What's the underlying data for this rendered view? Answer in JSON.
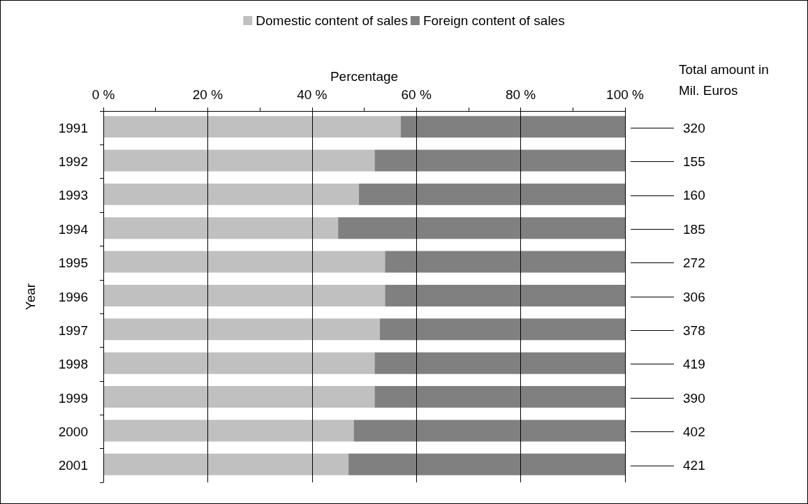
{
  "chart_data": {
    "type": "bar",
    "orientation": "horizontal",
    "stacked": true,
    "xlabel": "Percentage",
    "ylabel": "Year",
    "y2label": "Total amount in Mil. Euros",
    "categories": [
      "1991",
      "1992",
      "1993",
      "1994",
      "1995",
      "1996",
      "1997",
      "1998",
      "1999",
      "2000",
      "2001"
    ],
    "series": [
      {
        "name": "Domestic content of sales",
        "color": "#c0c0c0",
        "values": [
          57,
          52,
          49,
          45,
          54,
          54,
          53,
          52,
          52,
          48,
          47
        ]
      },
      {
        "name": "Foreign content of sales",
        "color": "#808080",
        "values": [
          43,
          48,
          51,
          55,
          46,
          46,
          47,
          48,
          48,
          52,
          53
        ]
      }
    ],
    "annotations": [
      "320",
      "155",
      "160",
      "185",
      "272",
      "306",
      "378",
      "419",
      "390",
      "402",
      "421"
    ],
    "xlim": [
      0,
      100
    ],
    "xticks": [
      {
        "value": 0,
        "label": "0 %"
      },
      {
        "value": 10,
        "label": null
      },
      {
        "value": 20,
        "label": "20 %"
      },
      {
        "value": 30,
        "label": null
      },
      {
        "value": 40,
        "label": "40 %"
      },
      {
        "value": 50,
        "label": null
      },
      {
        "value": 60,
        "label": "60 %"
      },
      {
        "value": 70,
        "label": null
      },
      {
        "value": 80,
        "label": "80 %"
      },
      {
        "value": 90,
        "label": null
      },
      {
        "value": 100,
        "label": "100 %"
      }
    ],
    "grid": "x",
    "legend": "top"
  }
}
